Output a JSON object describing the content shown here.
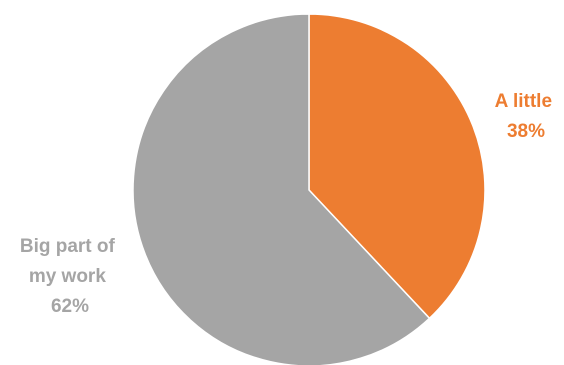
{
  "chart_data": {
    "type": "pie",
    "title": "",
    "start_angle_deg": 0,
    "direction": "clockwise",
    "slices": [
      {
        "label": "A little",
        "value": 38,
        "value_label": "38%",
        "color": "#ED7D31"
      },
      {
        "label": "Big part of my work",
        "label_lines": [
          "Big part of",
          "my work"
        ],
        "value": 62,
        "value_label": "62%",
        "color": "#A5A5A5"
      }
    ],
    "legend": "none",
    "data_labels": "outside, colored to match slice"
  }
}
